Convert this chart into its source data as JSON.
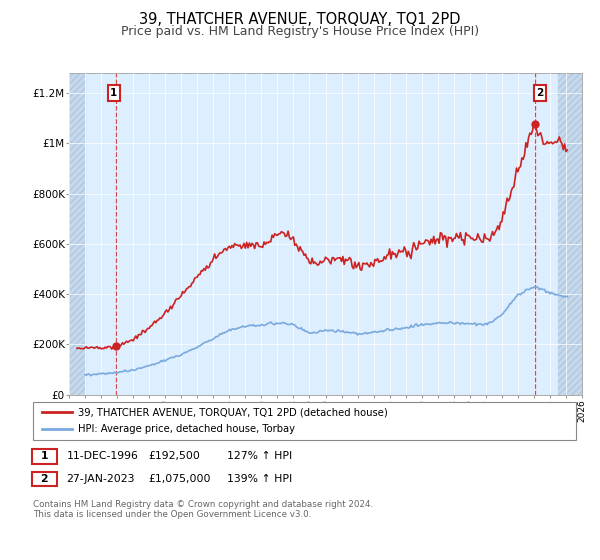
{
  "title": "39, THATCHER AVENUE, TORQUAY, TQ1 2PD",
  "subtitle": "Price paid vs. HM Land Registry's House Price Index (HPI)",
  "title_fontsize": 10.5,
  "subtitle_fontsize": 9,
  "ylabel_ticks": [
    "£0",
    "£200K",
    "£400K",
    "£600K",
    "£800K",
    "£1M",
    "£1.2M"
  ],
  "ytick_vals": [
    0,
    200000,
    400000,
    600000,
    800000,
    1000000,
    1200000
  ],
  "ylim": [
    0,
    1280000
  ],
  "xlim_start": 1994.0,
  "xlim_end": 2026.0,
  "hpi_color": "#7aaadd",
  "price_color": "#cc2222",
  "background_color": "#ddeeff",
  "hatch_color": "#c5d8ec",
  "grid_color": "#ffffff",
  "point1_x": 1996.95,
  "point1_y": 192500,
  "point2_x": 2023.07,
  "point2_y": 1075000,
  "legend_line1": "39, THATCHER AVENUE, TORQUAY, TQ1 2PD (detached house)",
  "legend_line2": "HPI: Average price, detached house, Torbay",
  "table_row1": [
    "1",
    "11-DEC-1996",
    "£192,500",
    "127% ↑ HPI"
  ],
  "table_row2": [
    "2",
    "27-JAN-2023",
    "£1,075,000",
    "139% ↑ HPI"
  ],
  "footnote": "Contains HM Land Registry data © Crown copyright and database right 2024.\nThis data is licensed under the Open Government Licence v3.0.",
  "hatch_left_end": 1995.0,
  "hatch_right_start": 2024.5
}
